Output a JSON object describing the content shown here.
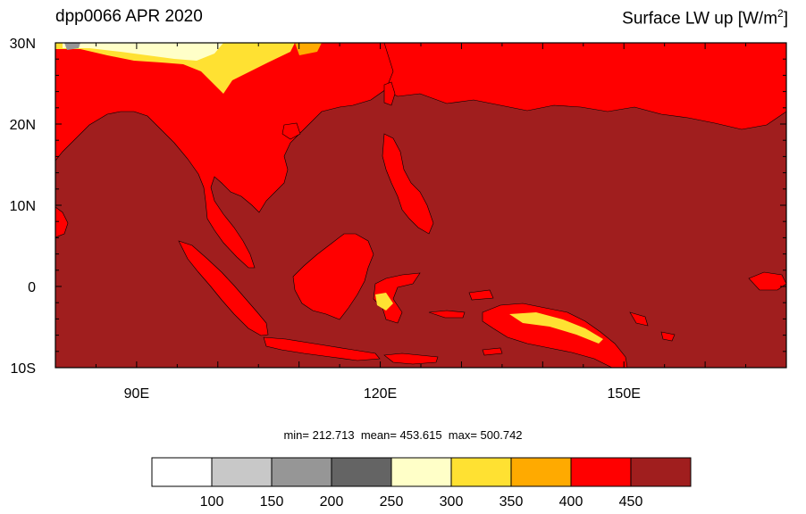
{
  "title_left": "dpp0066 APR 2020",
  "title_right_main": "Surface LW up [W/m",
  "title_right_sup": "2",
  "title_right_end": "]",
  "lat_labels": [
    "30N",
    "20N",
    "10N",
    "0",
    "10S"
  ],
  "lon_labels": [
    "90E",
    "120E",
    "150E"
  ],
  "stats": {
    "min": "min= 212.713",
    "mean": "mean= 453.615",
    "max": "max= 500.742"
  },
  "colorbar": {
    "colors": [
      "#ffffff",
      "#c8c8c8",
      "#969696",
      "#646464",
      "#ffffc8",
      "#ffe132",
      "#ffaa00",
      "#ff0000",
      "#a01e1e"
    ],
    "labels": [
      "100",
      "150",
      "200",
      "250",
      "300",
      "350",
      "400",
      "450"
    ]
  },
  "map": {
    "ocean_color": "#a01e1e",
    "land_color": "#ff0000",
    "extent": {
      "lon_min": 80,
      "lon_max": 170,
      "lat_min": -10,
      "lat_max": 30
    }
  }
}
